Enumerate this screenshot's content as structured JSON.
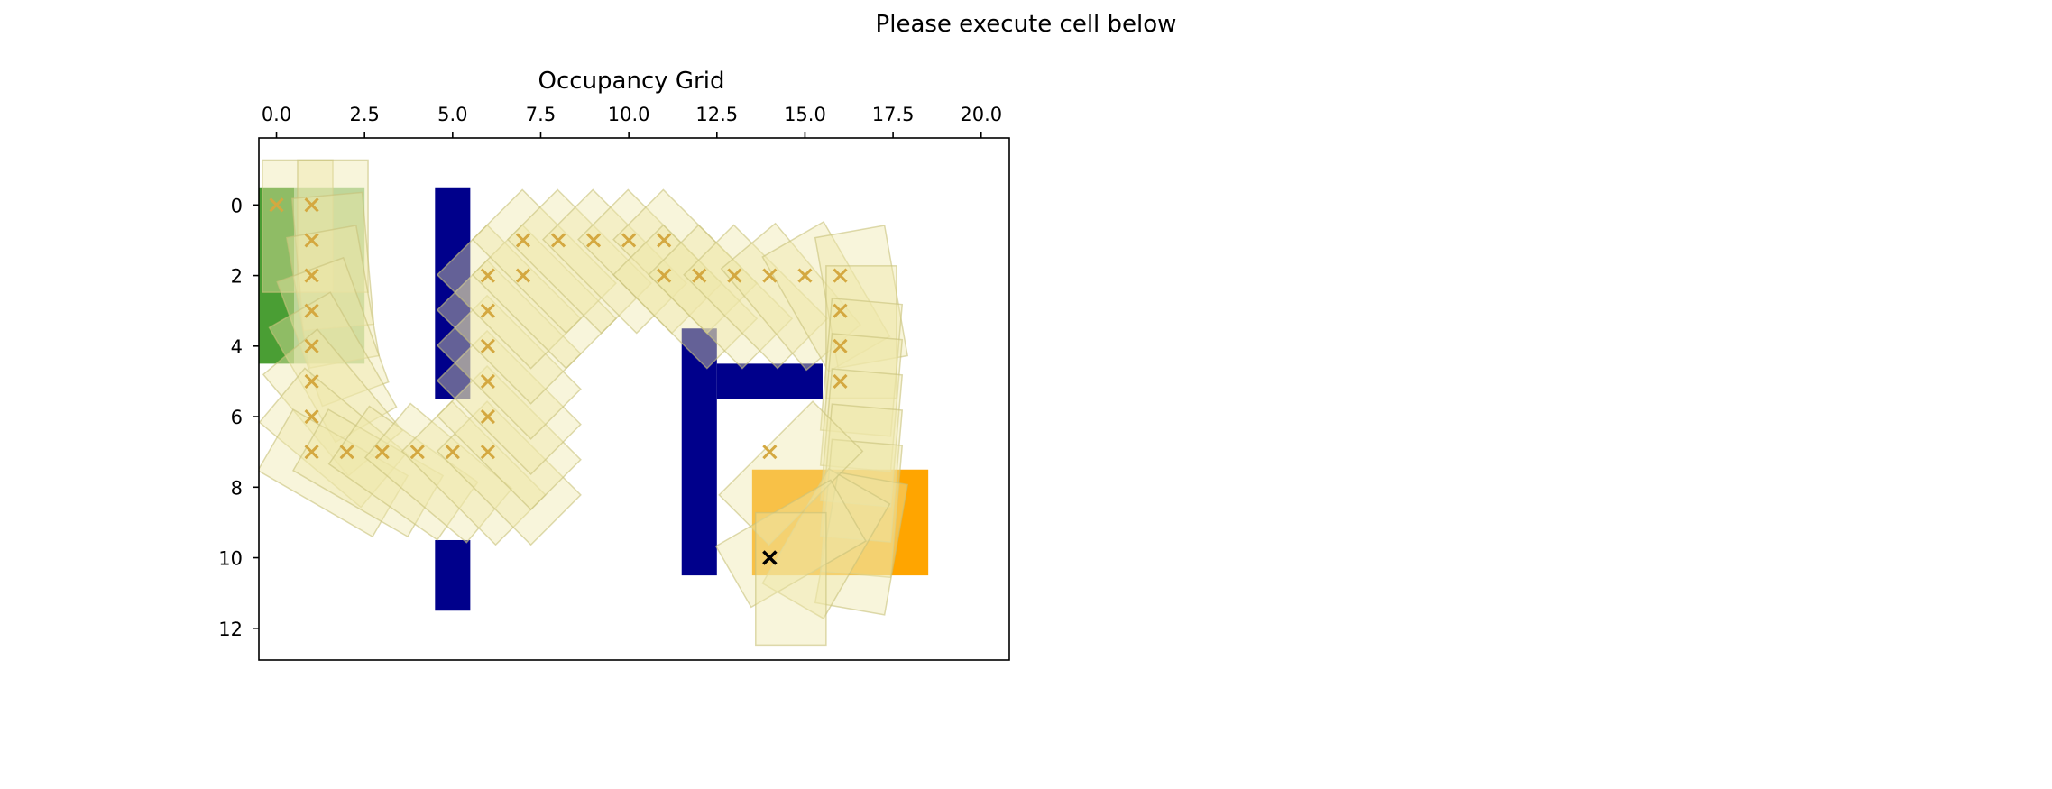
{
  "page": {
    "title": "Please execute cell below"
  },
  "chart_data": {
    "type": "heatmap",
    "title": "Occupancy Grid",
    "xlim": [
      -0.5,
      20.8
    ],
    "ylim": [
      12.9,
      -1.9
    ],
    "x_ticks": [
      0.0,
      2.5,
      5.0,
      7.5,
      10.0,
      12.5,
      15.0,
      17.5,
      20.0
    ],
    "x_tick_labels": [
      "0.0",
      "2.5",
      "5.0",
      "7.5",
      "10.0",
      "12.5",
      "15.0",
      "17.5",
      "20.0"
    ],
    "x_ticks_position": "top",
    "y_ticks": [
      0,
      2,
      4,
      6,
      8,
      10,
      12
    ],
    "y_tick_labels": [
      "0",
      "2",
      "4",
      "6",
      "8",
      "10",
      "12"
    ],
    "grid": false,
    "colors": {
      "obstacle": "#00008b",
      "start_region": "#4a9e34",
      "goal_region": "#ffa500",
      "footprint_fill": "#eee8aa",
      "footprint_edge": "#c8c27a",
      "path_marker": "#d4a840",
      "goal_marker": "#000000"
    },
    "obstacles": [
      {
        "x0": 4.5,
        "x1": 5.5,
        "y0": -0.5,
        "y1": 5.5
      },
      {
        "x0": 4.5,
        "x1": 5.5,
        "y0": 9.5,
        "y1": 11.5
      },
      {
        "x0": 11.5,
        "x1": 12.5,
        "y0": 3.5,
        "y1": 10.5
      },
      {
        "x0": 12.5,
        "x1": 15.5,
        "y0": 4.5,
        "y1": 5.5
      }
    ],
    "start_region": {
      "x0": -0.5,
      "x1": 0.5,
      "y0": -0.5,
      "y1": 4.5
    },
    "start_region_light": {
      "x0": 0.5,
      "x1": 2.5,
      "y0": -0.5,
      "y1": 4.5
    },
    "goal_region": {
      "x0": 13.5,
      "x1": 18.5,
      "y0": 7.5,
      "y1": 10.5
    },
    "footprint_size": [
      2.0,
      5.0
    ],
    "path": [
      {
        "x": 0,
        "y": 0,
        "theta": 0
      },
      {
        "x": 1,
        "y": 0,
        "theta": 0
      },
      {
        "x": 1,
        "y": 1,
        "theta": 5
      },
      {
        "x": 1,
        "y": 2,
        "theta": 10
      },
      {
        "x": 1,
        "y": 3,
        "theta": 20
      },
      {
        "x": 1,
        "y": 4,
        "theta": 30
      },
      {
        "x": 1,
        "y": 5,
        "theta": 40
      },
      {
        "x": 1,
        "y": 6,
        "theta": 50
      },
      {
        "x": 1,
        "y": 7,
        "theta": 60
      },
      {
        "x": 2,
        "y": 7,
        "theta": 60
      },
      {
        "x": 3,
        "y": 7,
        "theta": 55
      },
      {
        "x": 4,
        "y": 7,
        "theta": 50
      },
      {
        "x": 5,
        "y": 7,
        "theta": 45
      },
      {
        "x": 6,
        "y": 7,
        "theta": 45
      },
      {
        "x": 6,
        "y": 6,
        "theta": 45
      },
      {
        "x": 6,
        "y": 5,
        "theta": 45
      },
      {
        "x": 6,
        "y": 4,
        "theta": 45
      },
      {
        "x": 6,
        "y": 3,
        "theta": 45
      },
      {
        "x": 6,
        "y": 2,
        "theta": 45
      },
      {
        "x": 7,
        "y": 2,
        "theta": 45
      },
      {
        "x": 7,
        "y": 1,
        "theta": 45
      },
      {
        "x": 8,
        "y": 1,
        "theta": 45
      },
      {
        "x": 9,
        "y": 1,
        "theta": 45
      },
      {
        "x": 10,
        "y": 1,
        "theta": 45
      },
      {
        "x": 11,
        "y": 1,
        "theta": 45
      },
      {
        "x": 11,
        "y": 2,
        "theta": 45
      },
      {
        "x": 12,
        "y": 2,
        "theta": 45
      },
      {
        "x": 13,
        "y": 2,
        "theta": 45
      },
      {
        "x": 14,
        "y": 2,
        "theta": 40
      },
      {
        "x": 15,
        "y": 2,
        "theta": 30
      },
      {
        "x": 16,
        "y": 2,
        "theta": 10
      },
      {
        "x": 16,
        "y": 3,
        "theta": 0
      },
      {
        "x": 16,
        "y": 4,
        "theta": -5
      },
      {
        "x": 16,
        "y": 5,
        "theta": -5
      },
      {
        "x": 16,
        "y": 6,
        "theta": -5
      },
      {
        "x": 16,
        "y": 7,
        "theta": -5
      },
      {
        "x": 16,
        "y": 8,
        "theta": -5
      },
      {
        "x": 16,
        "y": 9,
        "theta": -10
      },
      {
        "x": 15,
        "y": 9,
        "theta": -30
      },
      {
        "x": 14,
        "y": 7,
        "theta": -45
      },
      {
        "x": 14,
        "y": 9,
        "theta": -60
      },
      {
        "x": 14,
        "y": 10,
        "theta": 0
      }
    ],
    "path_markers": [
      [
        0,
        0
      ],
      [
        1,
        0
      ],
      [
        1,
        1
      ],
      [
        1,
        2
      ],
      [
        1,
        3
      ],
      [
        1,
        4
      ],
      [
        1,
        5
      ],
      [
        1,
        6
      ],
      [
        1,
        7
      ],
      [
        2,
        7
      ],
      [
        3,
        7
      ],
      [
        4,
        7
      ],
      [
        5,
        7
      ],
      [
        6,
        7
      ],
      [
        6,
        6
      ],
      [
        6,
        5
      ],
      [
        6,
        4
      ],
      [
        6,
        3
      ],
      [
        6,
        2
      ],
      [
        7,
        2
      ],
      [
        7,
        1
      ],
      [
        8,
        1
      ],
      [
        9,
        1
      ],
      [
        10,
        1
      ],
      [
        11,
        1
      ],
      [
        11,
        2
      ],
      [
        12,
        2
      ],
      [
        13,
        2
      ],
      [
        14,
        2
      ],
      [
        15,
        2
      ],
      [
        16,
        2
      ],
      [
        16,
        3
      ],
      [
        16,
        4
      ],
      [
        16,
        5
      ],
      [
        14,
        7
      ]
    ],
    "goal_marker": [
      14,
      10
    ]
  }
}
